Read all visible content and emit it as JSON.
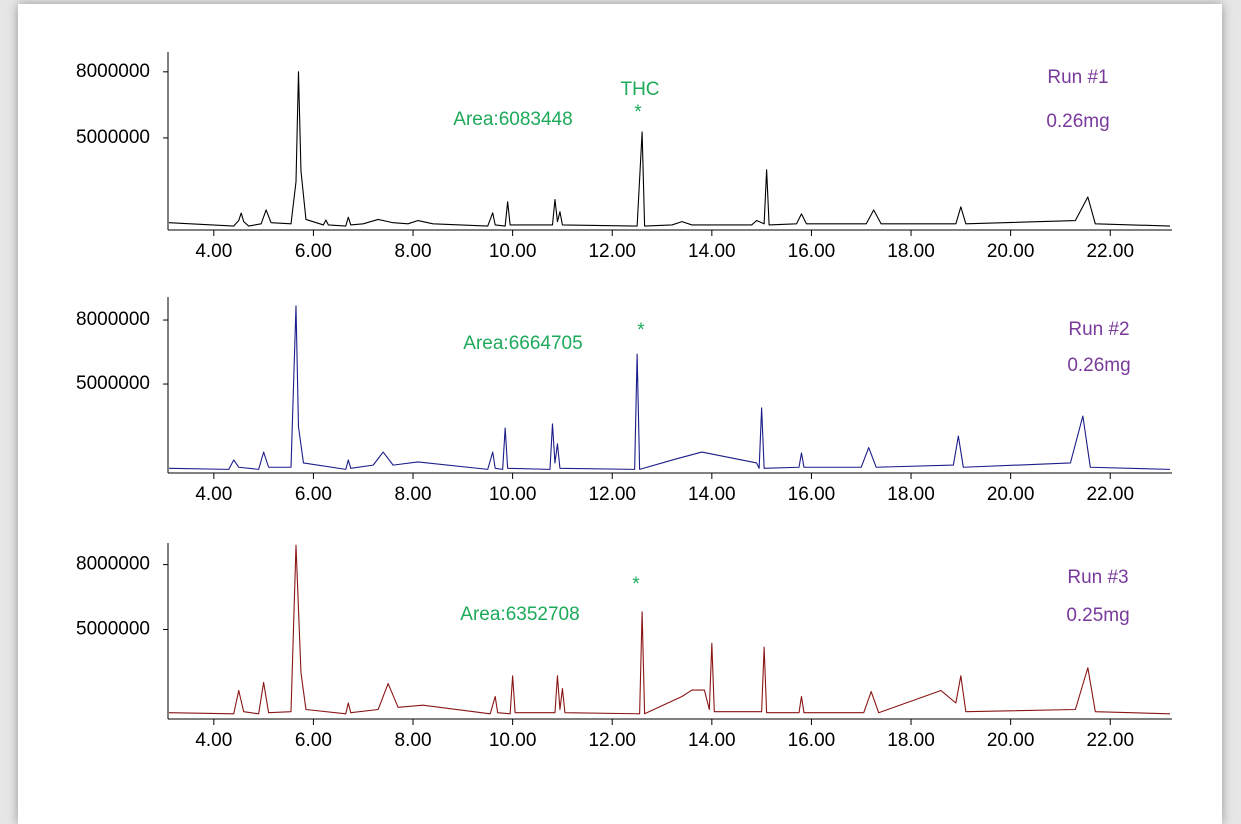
{
  "chart_data": [
    {
      "type": "line",
      "color": "#000000",
      "x": [
        3.1,
        4.4,
        4.5,
        4.55,
        4.6,
        4.7,
        4.95,
        5.05,
        5.15,
        5.55,
        5.65,
        5.7,
        5.75,
        5.85,
        6.2,
        6.25,
        6.3,
        6.65,
        6.7,
        6.75,
        7.0,
        7.3,
        7.6,
        7.9,
        8.1,
        8.4,
        9.5,
        9.6,
        9.65,
        9.85,
        9.9,
        9.95,
        10.8,
        10.85,
        10.9,
        10.95,
        11.0,
        12.5,
        12.6,
        12.65,
        13.2,
        13.4,
        13.6,
        14.8,
        14.9,
        15.05,
        15.1,
        15.15,
        15.7,
        15.8,
        15.9,
        17.1,
        17.25,
        17.4,
        18.9,
        19.0,
        19.1,
        21.3,
        21.55,
        21.7,
        23.2
      ],
      "values": [
        1150000,
        1000000,
        1250000,
        1590000,
        1200000,
        1000000,
        1100000,
        1730000,
        1150000,
        1100000,
        3000000,
        8000000,
        3500000,
        1300000,
        1050000,
        1270000,
        1050000,
        1000000,
        1400000,
        1050000,
        1100000,
        1300000,
        1150000,
        1100000,
        1250000,
        1100000,
        1000000,
        1600000,
        1050000,
        1000000,
        2100000,
        1050000,
        1050000,
        2200000,
        1200000,
        1650000,
        1050000,
        1000000,
        5270000,
        1000000,
        1050000,
        1200000,
        1050000,
        1050000,
        1250000,
        1100000,
        3550000,
        1050000,
        1100000,
        1550000,
        1100000,
        1100000,
        1730000,
        1100000,
        1100000,
        1870000,
        1100000,
        1250000,
        2320000,
        1100000,
        1000000
      ],
      "xlim": [
        3.08,
        23.24
      ],
      "ylim": [
        820000,
        8900000
      ],
      "xticks": [
        {
          "value": 4,
          "label": "4.00"
        },
        {
          "value": 6,
          "label": "6.00"
        },
        {
          "value": 8,
          "label": "8.00"
        },
        {
          "value": 10,
          "label": "10.00"
        },
        {
          "value": 12,
          "label": "12.00"
        },
        {
          "value": 14,
          "label": "14.00"
        },
        {
          "value": 16,
          "label": "16.00"
        },
        {
          "value": 18,
          "label": "18.00"
        },
        {
          "value": 20,
          "label": "20.00"
        },
        {
          "value": 22,
          "label": "22.00"
        }
      ],
      "yticks": [
        5000000,
        8000000
      ],
      "annotations": {
        "compound": "THC",
        "marker": "*",
        "area": "Area:6083448",
        "run": "Run #1",
        "amount": "0.26mg"
      }
    },
    {
      "type": "line",
      "color": "#1c1c8a",
      "x": [
        3.1,
        4.3,
        4.4,
        4.5,
        4.9,
        5.0,
        5.1,
        5.55,
        5.65,
        5.7,
        5.8,
        6.65,
        6.7,
        6.75,
        7.2,
        7.4,
        7.6,
        8.1,
        9.5,
        9.6,
        9.65,
        9.8,
        9.85,
        9.9,
        10.75,
        10.8,
        10.85,
        10.9,
        10.95,
        12.45,
        12.5,
        12.55,
        13.3,
        13.8,
        14.9,
        14.95,
        15.0,
        15.05,
        15.75,
        15.8,
        15.85,
        17.0,
        17.15,
        17.3,
        18.85,
        18.95,
        19.05,
        21.2,
        21.45,
        21.6,
        23.2
      ],
      "values": [
        1050000,
        1000000,
        1440000,
        1100000,
        1000000,
        1810000,
        1100000,
        1100000,
        8660000,
        3000000,
        1300000,
        1000000,
        1440000,
        1050000,
        1200000,
        1810000,
        1200000,
        1350000,
        1000000,
        1810000,
        1050000,
        1000000,
        2940000,
        1050000,
        1000000,
        3130000,
        1300000,
        2200000,
        1050000,
        1000000,
        6400000,
        1000000,
        1500000,
        1810000,
        1300000,
        1050000,
        3880000,
        1050000,
        1100000,
        1770000,
        1100000,
        1100000,
        2020000,
        1100000,
        1200000,
        2560000,
        1100000,
        1300000,
        3500000,
        1100000,
        1000000
      ],
      "xlim": [
        3.08,
        23.24
      ],
      "ylim": [
        830000,
        9080000
      ],
      "xticks": [
        {
          "value": 4,
          "label": "4.00"
        },
        {
          "value": 6,
          "label": "6.00"
        },
        {
          "value": 8,
          "label": "8.00"
        },
        {
          "value": 10,
          "label": "10.00"
        },
        {
          "value": 12,
          "label": "12.00"
        },
        {
          "value": 14,
          "label": "14.00"
        },
        {
          "value": 16,
          "label": "16.00"
        },
        {
          "value": 18,
          "label": "18.00"
        },
        {
          "value": 20,
          "label": "20.00"
        },
        {
          "value": 22,
          "label": "22.00"
        }
      ],
      "yticks": [
        5000000,
        8000000
      ],
      "annotations": {
        "marker": "*",
        "area": "Area:6664705",
        "run": "Run #2",
        "amount": "0.26mg"
      }
    },
    {
      "type": "line",
      "color": "#8a1616",
      "x": [
        3.1,
        4.4,
        4.5,
        4.6,
        4.9,
        5.0,
        5.1,
        5.55,
        5.65,
        5.75,
        5.85,
        6.65,
        6.7,
        6.75,
        7.3,
        7.5,
        7.7,
        8.2,
        9.55,
        9.65,
        9.7,
        9.95,
        10.0,
        10.05,
        10.85,
        10.9,
        10.95,
        11.0,
        11.05,
        12.55,
        12.6,
        12.65,
        13.4,
        13.6,
        13.85,
        13.95,
        14.0,
        14.05,
        15.0,
        15.05,
        15.1,
        15.75,
        15.8,
        15.85,
        17.05,
        17.2,
        17.35,
        18.6,
        18.9,
        19.0,
        19.1,
        21.3,
        21.55,
        21.7,
        23.2
      ],
      "values": [
        1150000,
        1100000,
        2180000,
        1200000,
        1100000,
        2550000,
        1150000,
        1200000,
        8900000,
        3000000,
        1300000,
        1100000,
        1600000,
        1150000,
        1300000,
        2500000,
        1400000,
        1500000,
        1100000,
        1900000,
        1150000,
        1100000,
        2860000,
        1150000,
        1150000,
        2860000,
        1300000,
        2270000,
        1150000,
        1100000,
        5820000,
        1100000,
        1900000,
        2200000,
        2200000,
        1300000,
        4360000,
        1200000,
        1200000,
        4180000,
        1150000,
        1150000,
        1900000,
        1150000,
        1150000,
        2130000,
        1150000,
        2180000,
        1600000,
        2860000,
        1200000,
        1300000,
        3230000,
        1200000,
        1100000
      ],
      "xlim": [
        3.08,
        23.24
      ],
      "ylim": [
        860000,
        9000000
      ],
      "xticks": [
        {
          "value": 4,
          "label": "4.00"
        },
        {
          "value": 6,
          "label": "6.00"
        },
        {
          "value": 8,
          "label": "8.00"
        },
        {
          "value": 10,
          "label": "10.00"
        },
        {
          "value": 12,
          "label": "12.00"
        },
        {
          "value": 14,
          "label": "14.00"
        },
        {
          "value": 16,
          "label": "16.00"
        },
        {
          "value": 18,
          "label": "18.00"
        },
        {
          "value": 20,
          "label": "20.00"
        },
        {
          "value": 22,
          "label": "22.00"
        }
      ],
      "yticks": [
        5000000,
        8000000
      ],
      "annotations": {
        "marker": "*",
        "area": "Area:6352708",
        "run": "Run #3",
        "amount": "0.25mg"
      }
    }
  ]
}
